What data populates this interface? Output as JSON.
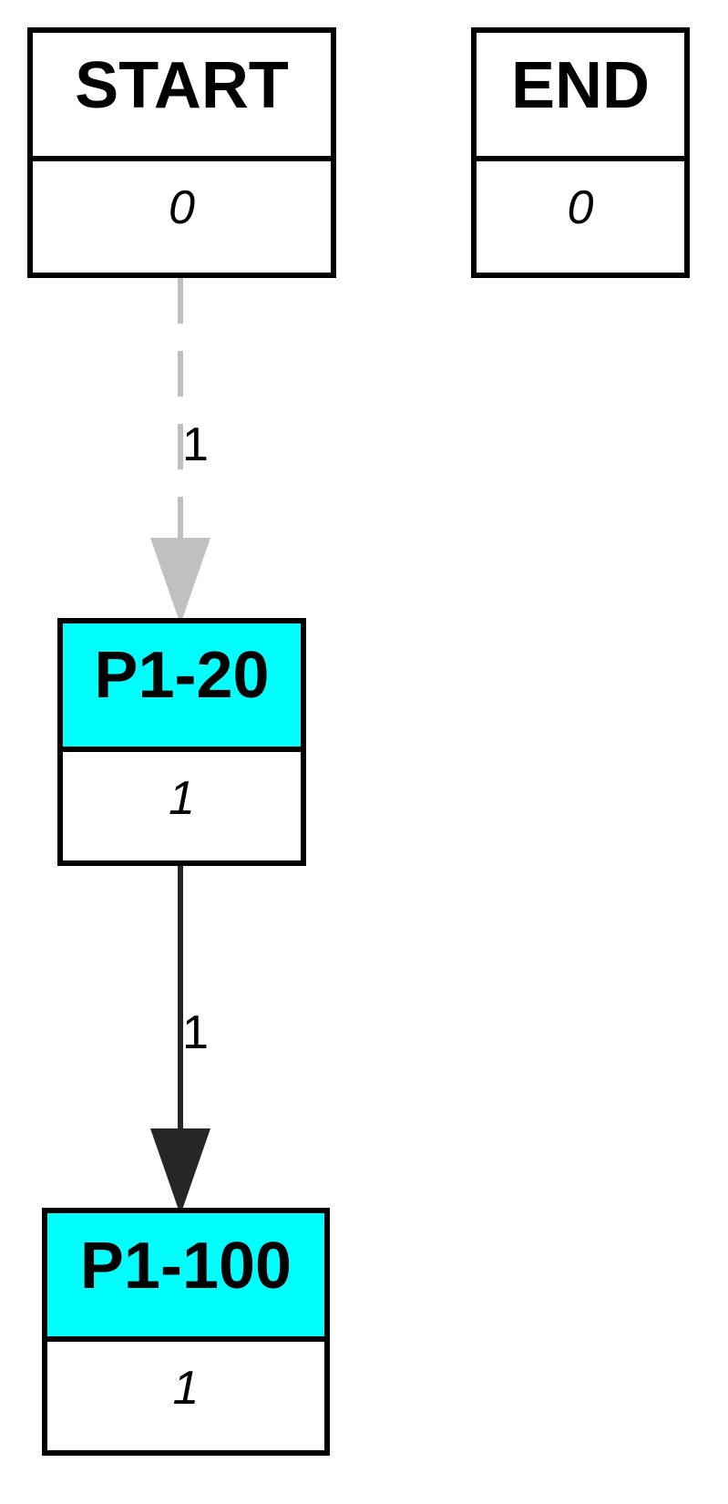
{
  "colors": {
    "node_border": "#000000",
    "highlight_fill": "#00ffff",
    "plain_fill": "#ffffff",
    "start_edge": "#c0c0c0",
    "flow_edge": "#262626"
  },
  "nodes": [
    {
      "id": "start",
      "title": "START",
      "count": "0",
      "fill": "#ffffff"
    },
    {
      "id": "end",
      "title": "END",
      "count": "0",
      "fill": "#ffffff"
    },
    {
      "id": "p1-20",
      "title": "P1-20",
      "count": "1",
      "fill": "#00ffff"
    },
    {
      "id": "p1-100",
      "title": "P1-100",
      "count": "1",
      "fill": "#00ffff"
    }
  ],
  "edges": [
    {
      "from": "START",
      "to": "P1-20",
      "label": "1",
      "style": "dashed",
      "color": "#c0c0c0"
    },
    {
      "from": "P1-20",
      "to": "P1-100",
      "label": "1",
      "style": "solid",
      "color": "#262626"
    }
  ]
}
